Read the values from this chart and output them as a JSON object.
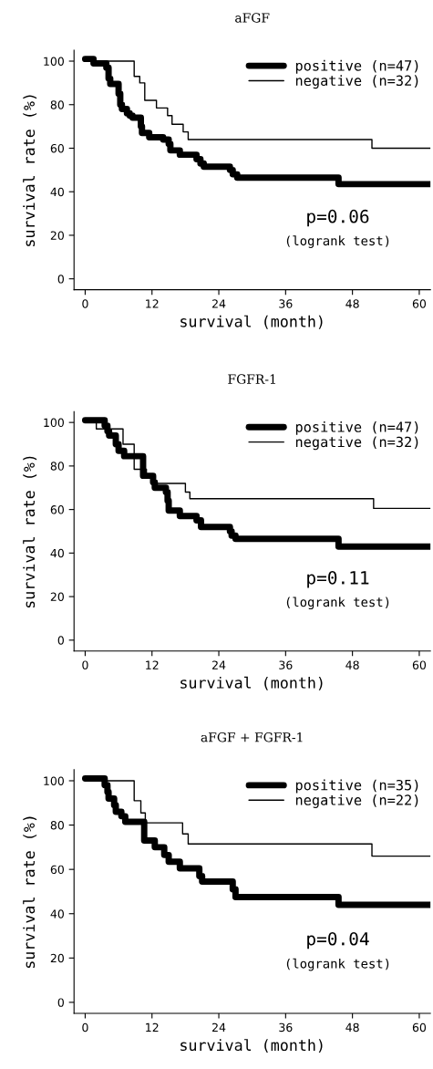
{
  "chart_data": [
    {
      "type": "step",
      "title": "aFGF",
      "xlabel": "survival (month)",
      "ylabel": "survival rate (%)",
      "xlim": [
        -2,
        62
      ],
      "ylim": [
        -5,
        105
      ],
      "xticks": [
        0,
        12,
        24,
        36,
        48,
        60
      ],
      "yticks": [
        0,
        20,
        40,
        60,
        80,
        100
      ],
      "legend": "top right",
      "grid": false,
      "annotations": [
        "p=0.06",
        "(logrank test)"
      ],
      "series": [
        {
          "name": "positive (n=47)",
          "color": "#000000",
          "x": [
            0,
            1.5,
            3.8,
            4.2,
            4.5,
            6,
            6.3,
            6.6,
            7.5,
            8,
            8.5,
            10,
            10.2,
            11.5,
            14,
            15,
            15.3,
            17,
            20,
            20.7,
            21.3,
            26,
            26.5,
            27.3,
            45.5,
            62
          ],
          "values": [
            101,
            99,
            97,
            92,
            89.5,
            85,
            80,
            78,
            76,
            75,
            74,
            70,
            67,
            65,
            64,
            62,
            59,
            57,
            55,
            53,
            51.5,
            50,
            48,
            46.5,
            43.5,
            43.5
          ]
        },
        {
          "name": "negative (n=32)",
          "color": "#000000",
          "x": [
            0,
            8.8,
            9.8,
            10.7,
            12.8,
            14.8,
            15.6,
            17.6,
            18.5,
            51.5,
            62
          ],
          "values": [
            100,
            93,
            90,
            82,
            78.5,
            75,
            71,
            67.5,
            64,
            60,
            60
          ]
        }
      ]
    },
    {
      "type": "step",
      "title": "FGFR-1",
      "xlabel": "survival (month)",
      "ylabel": "survival rate (%)",
      "xlim": [
        -2,
        62
      ],
      "ylim": [
        -5,
        105
      ],
      "xticks": [
        0,
        12,
        24,
        36,
        48,
        60
      ],
      "yticks": [
        0,
        20,
        40,
        60,
        80,
        100
      ],
      "legend": "top right",
      "grid": false,
      "annotations": [
        "p=0.11",
        "(logrank test)"
      ],
      "series": [
        {
          "name": "positive (n=47)",
          "color": "#000000",
          "x": [
            0,
            3.5,
            4,
            4.3,
            5.5,
            6,
            7,
            10.4,
            12.2,
            12.5,
            14.5,
            14.8,
            15,
            17,
            20,
            20.8,
            26,
            26.3,
            27,
            45.5,
            62
          ],
          "values": [
            101,
            98.5,
            96,
            94,
            90,
            87,
            84.5,
            75.5,
            72.5,
            70,
            68,
            64,
            59.5,
            57,
            55,
            52,
            50,
            48,
            46.5,
            43,
            43
          ]
        },
        {
          "name": "negative (n=32)",
          "color": "#000000",
          "x": [
            0,
            2,
            6.8,
            8.8,
            11,
            12,
            18,
            18.8,
            51.8,
            62
          ],
          "values": [
            100,
            97,
            90,
            78.5,
            74.5,
            72,
            68,
            65,
            60.5,
            60.5
          ]
        }
      ]
    },
    {
      "type": "step",
      "title": "aFGF + FGFR-1",
      "xlabel": "survival (month)",
      "ylabel": "survival rate (%)",
      "xlim": [
        -2,
        62
      ],
      "ylim": [
        -5,
        105
      ],
      "xticks": [
        0,
        12,
        24,
        36,
        48,
        60
      ],
      "yticks": [
        0,
        20,
        40,
        60,
        80,
        100
      ],
      "legend": "top right",
      "grid": false,
      "annotations": [
        "p=0.04",
        "(logrank test)"
      ],
      "series": [
        {
          "name": "positive (n=35)",
          "color": "#000000",
          "x": [
            0,
            3.5,
            4,
            4.2,
            5.2,
            5.5,
            6.5,
            7.2,
            10.6,
            12.5,
            14.2,
            15,
            17,
            20.5,
            21,
            26.5,
            27,
            45.5,
            62
          ],
          "values": [
            101,
            98,
            95,
            92,
            89,
            86,
            84,
            81.5,
            73,
            70,
            66.5,
            63.5,
            60.5,
            57,
            54.5,
            51,
            47.5,
            44,
            44
          ]
        },
        {
          "name": "negative (n=22)",
          "color": "#000000",
          "x": [
            0,
            8.8,
            10,
            10.8,
            17.5,
            18.5,
            51.5,
            62
          ],
          "values": [
            100,
            91,
            85.5,
            81,
            76,
            71.5,
            66,
            66
          ]
        }
      ]
    }
  ]
}
